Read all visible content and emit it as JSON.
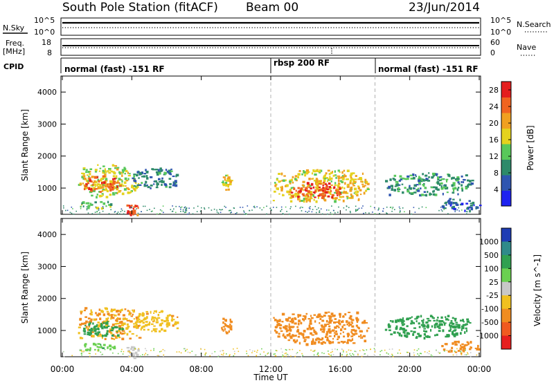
{
  "header": {
    "station": "South Pole Station (fitACF)",
    "beam": "Beam 00",
    "date": "23/Jun/2014"
  },
  "aux_labels": {
    "nsky": "N.Sky",
    "nsearch": "N.Search",
    "freq_line1": "Freq.",
    "freq_line2": "[MHz]",
    "nave": "Nave",
    "cpid": "CPID"
  },
  "noise_ticks": {
    "top": "10^5",
    "bottom": "10^0"
  },
  "freq_ticks": {
    "left_top": "18",
    "left_bottom": "8",
    "right_top": "60",
    "right_bottom": "0"
  },
  "cpid_segments": [
    {
      "label": "normal (fast) -151 RF",
      "start_h": 0,
      "end_h": 12
    },
    {
      "label": "rbsp 200 RF",
      "start_h": 12,
      "end_h": 18
    },
    {
      "label": "normal (fast) -151 RF",
      "start_h": 18,
      "end_h": 24
    }
  ],
  "chart_data": [
    {
      "type": "heatmap",
      "title": "",
      "xlabel": "Time UT",
      "ylabel": "Slant Range [km]",
      "xlim": [
        0,
        24
      ],
      "ylim": [
        180,
        4500
      ],
      "x_ticks": [
        "00:00",
        "04:00",
        "08:00",
        "12:00",
        "16:00",
        "20:00",
        "00:00"
      ],
      "y_ticks": [
        1000,
        2000,
        3000,
        4000
      ],
      "quantity": "Power",
      "colorbar": {
        "label": "Power [dB]",
        "ticks": [
          4,
          8,
          12,
          16,
          20,
          24,
          28
        ],
        "range": [
          0,
          30
        ]
      },
      "regions": [
        {
          "t0": 0.9,
          "t1": 4.4,
          "r0": 750,
          "r1": 1750,
          "value": 16
        },
        {
          "t0": 1.0,
          "t1": 3.3,
          "r0": 900,
          "r1": 1400,
          "value": 24
        },
        {
          "t0": 4.0,
          "t1": 6.6,
          "r0": 1000,
          "r1": 1650,
          "value": 8
        },
        {
          "t0": 0.8,
          "t1": 3.0,
          "r0": 400,
          "r1": 620,
          "value": 14
        },
        {
          "t0": 3.6,
          "t1": 4.4,
          "r0": 180,
          "r1": 520,
          "value": 26
        },
        {
          "t0": 9.1,
          "t1": 9.7,
          "r0": 950,
          "r1": 1450,
          "value": 18
        },
        {
          "t0": 12.1,
          "t1": 17.6,
          "r0": 600,
          "r1": 1600,
          "value": 18
        },
        {
          "t0": 13.0,
          "t1": 16.2,
          "r0": 700,
          "r1": 1200,
          "value": 26
        },
        {
          "t0": 18.5,
          "t1": 23.6,
          "r0": 800,
          "r1": 1500,
          "value": 10
        },
        {
          "t0": 21.8,
          "t1": 24.0,
          "r0": 300,
          "r1": 700,
          "value": 6
        }
      ]
    },
    {
      "type": "heatmap",
      "title": "",
      "xlabel": "Time UT",
      "ylabel": "Slant Range [km]",
      "xlim": [
        0,
        24
      ],
      "ylim": [
        180,
        4500
      ],
      "x_ticks": [
        "00:00",
        "04:00",
        "08:00",
        "12:00",
        "16:00",
        "20:00",
        "00:00"
      ],
      "y_ticks": [
        1000,
        2000,
        3000,
        4000
      ],
      "quantity": "Velocity",
      "colorbar": {
        "label": "Velocity [m s^-1]",
        "ticks": [
          "1000",
          "500",
          "100",
          "25",
          "-25",
          "-100",
          "-500",
          "-1000"
        ]
      },
      "regions": [
        {
          "t0": 0.9,
          "t1": 4.4,
          "r0": 750,
          "r1": 1750,
          "value": -100
        },
        {
          "t0": 1.0,
          "t1": 3.5,
          "r0": 850,
          "r1": 1300,
          "value": 300
        },
        {
          "t0": 4.0,
          "t1": 6.6,
          "r0": 1000,
          "r1": 1650,
          "value": -80
        },
        {
          "t0": 0.8,
          "t1": 3.0,
          "r0": 400,
          "r1": 620,
          "value": 80
        },
        {
          "t0": 3.6,
          "t1": 4.4,
          "r0": 180,
          "r1": 520,
          "value": 10
        },
        {
          "t0": 9.1,
          "t1": 9.7,
          "r0": 950,
          "r1": 1450,
          "value": -200
        },
        {
          "t0": 12.1,
          "t1": 17.6,
          "r0": 600,
          "r1": 1600,
          "value": -300
        },
        {
          "t0": 18.5,
          "t1": 23.6,
          "r0": 800,
          "r1": 1500,
          "value": 200
        },
        {
          "t0": 21.8,
          "t1": 24.0,
          "r0": 300,
          "r1": 700,
          "value": -150
        }
      ]
    }
  ],
  "colors": {
    "power_scale": [
      "#1e22f0",
      "#2f55b0",
      "#2e8a6a",
      "#58c85a",
      "#e4d21e",
      "#f0a020",
      "#f06420",
      "#e41e1e"
    ],
    "velocity_scale": [
      "#1e3cb4",
      "#2f8a8a",
      "#30a050",
      "#6ad050",
      "#c8c8c8",
      "#f0c020",
      "#f08c20",
      "#f05a20",
      "#e61e1e"
    ],
    "grid_dash": "#b0b0b0"
  }
}
